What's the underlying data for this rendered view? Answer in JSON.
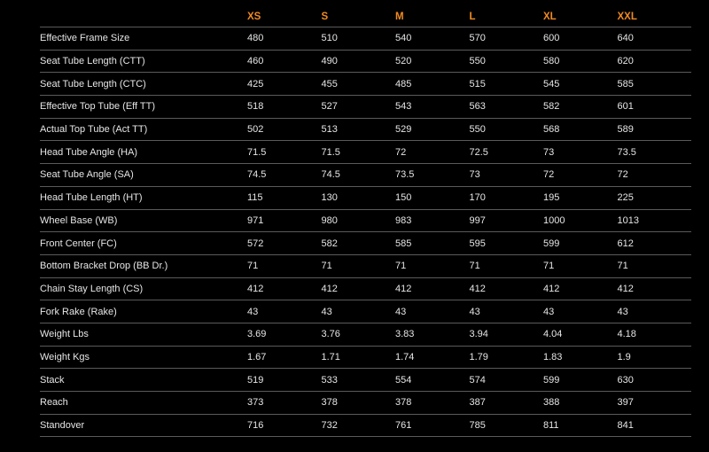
{
  "sizes": [
    "XS",
    "S",
    "M",
    "L",
    "XL",
    "XXL"
  ],
  "accent_color": "#f08a24",
  "rows": [
    {
      "label": "Effective Frame Size",
      "values": [
        "480",
        "510",
        "540",
        "570",
        "600",
        "640"
      ]
    },
    {
      "label": "Seat Tube Length (CTT)",
      "values": [
        "460",
        "490",
        "520",
        "550",
        "580",
        "620"
      ]
    },
    {
      "label": "Seat Tube Length (CTC)",
      "values": [
        "425",
        "455",
        "485",
        "515",
        "545",
        "585"
      ]
    },
    {
      "label": "Effective Top Tube (Eff TT)",
      "values": [
        "518",
        "527",
        "543",
        "563",
        "582",
        "601"
      ]
    },
    {
      "label": "Actual Top Tube (Act TT)",
      "values": [
        "502",
        "513",
        "529",
        "550",
        "568",
        "589"
      ]
    },
    {
      "label": "Head Tube Angle (HA)",
      "values": [
        "71.5",
        "71.5",
        "72",
        "72.5",
        "73",
        "73.5"
      ]
    },
    {
      "label": "Seat Tube Angle (SA)",
      "values": [
        "74.5",
        "74.5",
        "73.5",
        "73",
        "72",
        "72"
      ]
    },
    {
      "label": "Head Tube Length (HT)",
      "values": [
        "115",
        "130",
        "150",
        "170",
        "195",
        "225"
      ]
    },
    {
      "label": "Wheel Base (WB)",
      "values": [
        "971",
        "980",
        "983",
        "997",
        "1000",
        "1013"
      ]
    },
    {
      "label": "Front Center (FC)",
      "values": [
        "572",
        "582",
        "585",
        "595",
        "599",
        "612"
      ]
    },
    {
      "label": "Bottom Bracket Drop (BB Dr.)",
      "values": [
        "71",
        "71",
        "71",
        "71",
        "71",
        "71"
      ]
    },
    {
      "label": "Chain Stay Length (CS)",
      "values": [
        "412",
        "412",
        "412",
        "412",
        "412",
        "412"
      ]
    },
    {
      "label": "Fork Rake (Rake)",
      "values": [
        "43",
        "43",
        "43",
        "43",
        "43",
        "43"
      ]
    },
    {
      "label": "Weight Lbs",
      "values": [
        "3.69",
        "3.76",
        "3.83",
        "3.94",
        "4.04",
        "4.18"
      ]
    },
    {
      "label": "Weight Kgs",
      "values": [
        "1.67",
        "1.71",
        "1.74",
        "1.79",
        "1.83",
        "1.9"
      ]
    },
    {
      "label": "Stack",
      "values": [
        "519",
        "533",
        "554",
        "574",
        "599",
        "630"
      ]
    },
    {
      "label": "Reach",
      "values": [
        "373",
        "378",
        "378",
        "387",
        "388",
        "397"
      ]
    },
    {
      "label": "Standover",
      "values": [
        "716",
        "732",
        "761",
        "785",
        "811",
        "841"
      ]
    }
  ]
}
